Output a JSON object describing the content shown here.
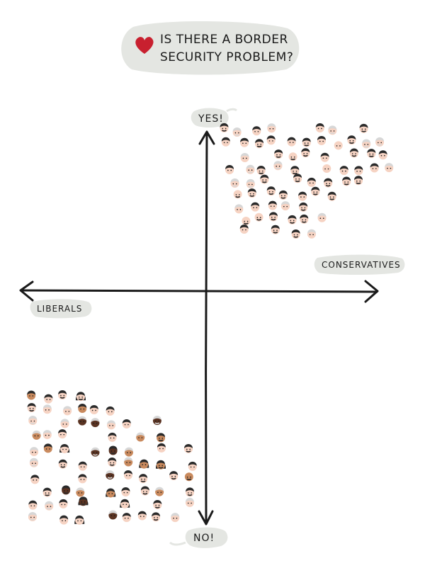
{
  "title": {
    "line1": "IS THERE A BORDER",
    "line2": "SECURITY PROBLEM?",
    "icon": "heart-icon",
    "icon_color": "#c8202f"
  },
  "axes": {
    "y_top": "YES!",
    "y_bottom": "NO!",
    "x_left": "LIBERALS",
    "x_right": "CONSERVATIVES"
  },
  "colors": {
    "bubble": "#e4e6e2",
    "stroke": "#1a1a1a",
    "skin_light": "#f6d3c3",
    "skin_medium": "#c98a5e",
    "skin_dark": "#5a3322",
    "hair_dark": "#2a2a2a",
    "hair_grey": "#d7d7d7"
  },
  "groups": [
    {
      "name": "conservatives",
      "quadrant": "top-right",
      "skin_mix": [
        "light"
      ]
    },
    {
      "name": "liberals",
      "quadrant": "bottom-left",
      "skin_mix": [
        "light",
        "medium",
        "dark"
      ]
    }
  ]
}
